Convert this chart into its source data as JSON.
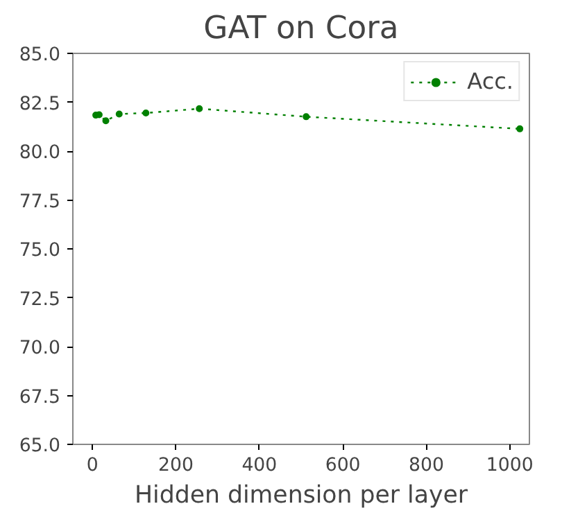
{
  "chart_data": {
    "type": "line",
    "title": "GAT on Cora",
    "xlabel": "Hidden dimension per layer",
    "x": [
      8,
      16,
      32,
      64,
      128,
      256,
      512,
      1024
    ],
    "series": [
      {
        "name": "Acc.",
        "color": "#008000",
        "values": [
          81.84,
          81.86,
          81.55,
          81.9,
          81.95,
          82.17,
          81.76,
          81.14
        ]
      }
    ],
    "xlim": [
      -47,
      1047
    ],
    "xticks": [
      0,
      200,
      400,
      600,
      800,
      1000
    ],
    "ylim": [
      65,
      85
    ],
    "yticks": [
      {
        "value": 65,
        "label": "65.0"
      },
      {
        "value": 67.5,
        "label": "67.5"
      },
      {
        "value": 70,
        "label": "70.0"
      },
      {
        "value": 72.5,
        "label": "72.5"
      },
      {
        "value": 75,
        "label": "75.0"
      },
      {
        "value": 77.5,
        "label": "77.5"
      },
      {
        "value": 80,
        "label": "80.0"
      },
      {
        "value": 82.5,
        "label": "82.5"
      },
      {
        "value": 85,
        "label": "85.0"
      }
    ],
    "grid": false,
    "legend": "top right",
    "marker": "circle",
    "line_style": "dotted"
  }
}
